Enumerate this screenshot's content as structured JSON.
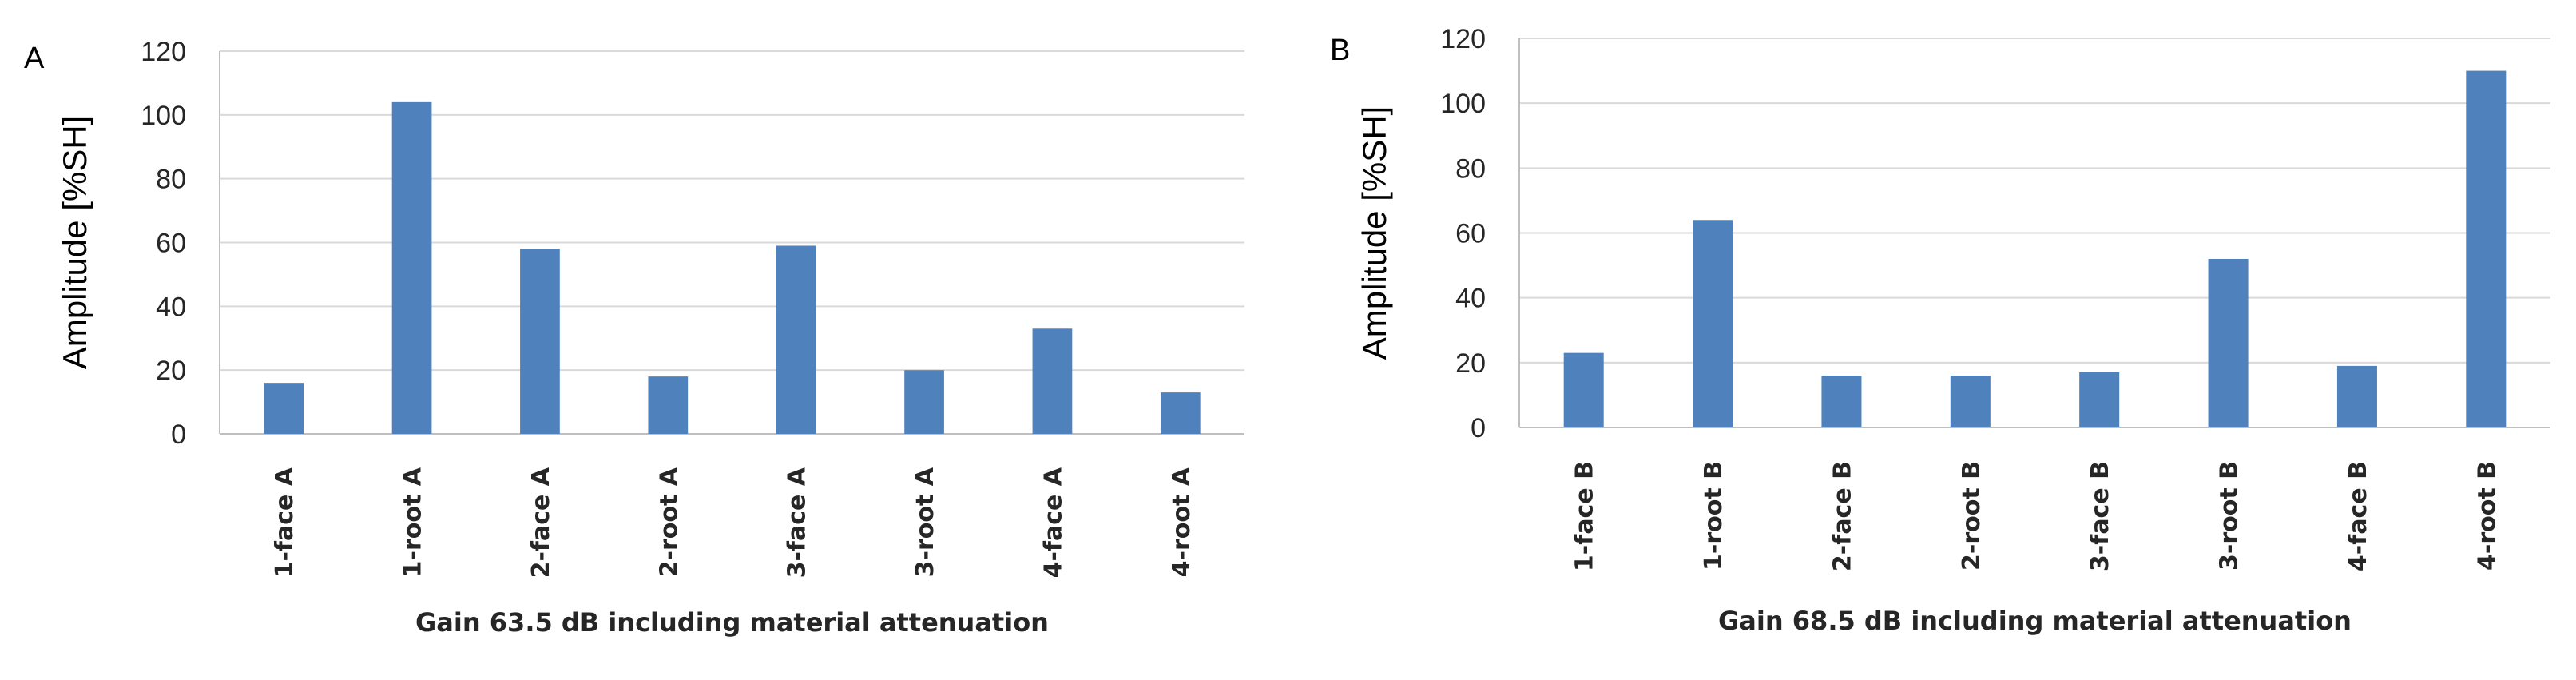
{
  "chart_data": [
    {
      "panel_label": "A",
      "type": "bar",
      "categories": [
        "1-face A",
        "1-root A",
        "2-face A",
        "2-root A",
        "3-face A",
        "3-root A",
        "4-face A",
        "4-root A"
      ],
      "values": [
        16,
        104,
        58,
        18,
        59,
        20,
        33,
        13
      ],
      "ylabel": "Amplitude [%SH]",
      "xlabel": "Gain 63.5 dB including material attenuation",
      "ylim": [
        0,
        120
      ],
      "yticks": [
        0,
        20,
        40,
        60,
        80,
        100,
        120
      ],
      "grid": true,
      "bar_color": "#4f81bd"
    },
    {
      "panel_label": "B",
      "type": "bar",
      "categories": [
        "1-face B",
        "1-root B",
        "2-face B",
        "2-root B",
        "3-face B",
        "3-root B",
        "4-face B",
        "4-root B"
      ],
      "values": [
        23,
        64,
        16,
        16,
        17,
        52,
        19,
        110
      ],
      "ylabel": "Amplitude [%SH]",
      "xlabel": "Gain 68.5 dB including material attenuation",
      "ylim": [
        0,
        120
      ],
      "yticks": [
        0,
        20,
        40,
        60,
        80,
        100,
        120
      ],
      "grid": true,
      "bar_color": "#4f81bd"
    }
  ]
}
